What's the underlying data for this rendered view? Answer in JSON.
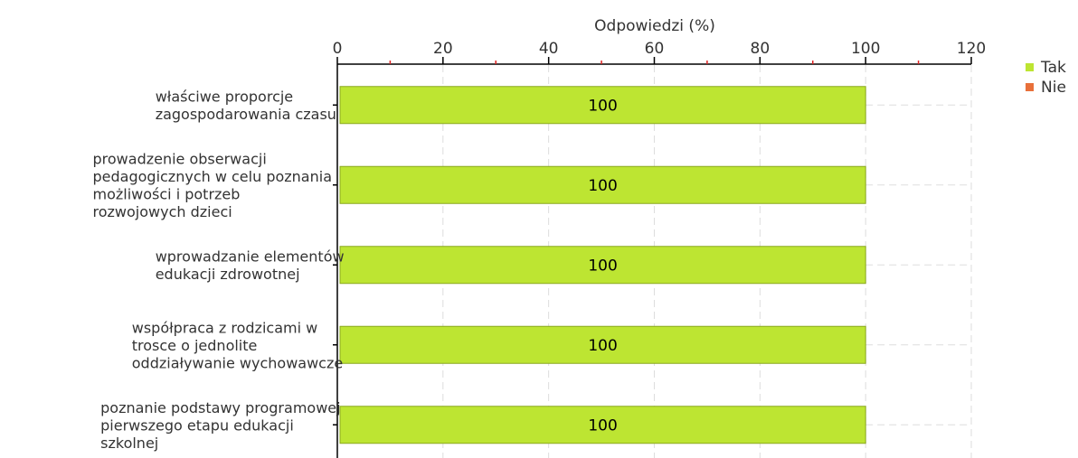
{
  "chart_data": {
    "type": "bar",
    "orientation": "horizontal",
    "xlabel": "Odpowiedzi (%)",
    "xlim": [
      0,
      120
    ],
    "xticks": [
      0,
      20,
      40,
      60,
      80,
      100,
      120
    ],
    "xticks_labels": [
      "0",
      "20",
      "40",
      "60",
      "80",
      "100",
      "120"
    ],
    "grid": true,
    "legend_position": "right",
    "categories": [
      [
        "właściwe proporcje",
        "zagospodarowania czasu"
      ],
      [
        "prowadzenie obserwacji",
        "pedagogicznych w celu poznania",
        "możliwości i potrzeb",
        "rozwojowych dzieci"
      ],
      [
        "wprowadzanie elementów",
        "edukacji zdrowotnej"
      ],
      [
        "współpraca z rodzicami w",
        "trosce o jednolite",
        "oddziaływanie wychowawcze"
      ],
      [
        "poznanie podstawy programowej",
        "pierwszego etapu edukacji",
        "szkolnej"
      ]
    ],
    "series": [
      {
        "name": "Tak",
        "color": "#bde532",
        "values": [
          100,
          100,
          100,
          100,
          100
        ],
        "labels": [
          "100",
          "100",
          "100",
          "100",
          "100"
        ]
      },
      {
        "name": "Nie",
        "color": "#e8703a",
        "values": [
          0,
          0,
          0,
          0,
          0
        ]
      }
    ]
  }
}
